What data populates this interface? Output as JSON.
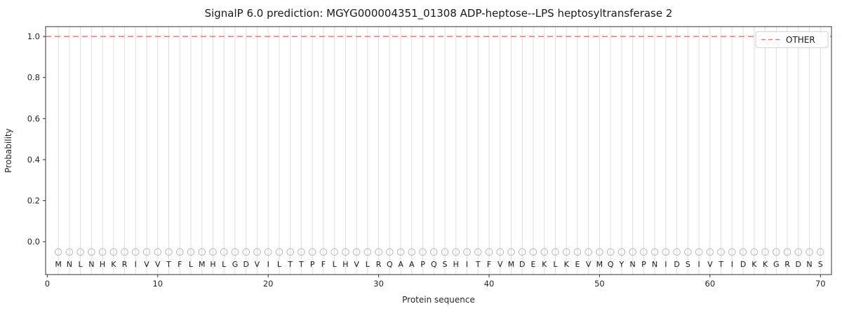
{
  "chart_data": {
    "type": "line",
    "title": "SignalP 6.0 prediction: MGYG000004351_01308 ADP-heptose--LPS heptosyltransferase 2",
    "xlabel": "Protein sequence",
    "ylabel": "Probability",
    "xlim": [
      -0.15,
      71.0
    ],
    "ylim": [
      -0.16,
      1.048
    ],
    "x_ticks": [
      0,
      10,
      20,
      30,
      40,
      50,
      60,
      70
    ],
    "y_ticks": [
      "0.0",
      "0.2",
      "0.4",
      "0.6",
      "0.8",
      "1.0"
    ],
    "grid": {
      "vertical_per_residue": true,
      "horizontal": false,
      "color": "#dddddd"
    },
    "legend": {
      "position": "upper right",
      "entries": [
        {
          "label": "OTHER",
          "color": "#ee7577",
          "style": "dashed"
        }
      ]
    },
    "series": [
      {
        "name": "OTHER",
        "color": "#ee7577",
        "style": "dashed",
        "constant_y": 1.0
      }
    ],
    "sequence": [
      "M",
      "N",
      "L",
      "N",
      "H",
      "K",
      "R",
      "I",
      "V",
      "V",
      "T",
      "F",
      "L",
      "M",
      "H",
      "L",
      "G",
      "D",
      "V",
      "I",
      "L",
      "T",
      "T",
      "P",
      "F",
      "L",
      "H",
      "V",
      "L",
      "R",
      "Q",
      "A",
      "A",
      "P",
      "Q",
      "S",
      "H",
      "I",
      "T",
      "F",
      "V",
      "M",
      "D",
      "E",
      "K",
      "L",
      "K",
      "E",
      "V",
      "M",
      "Q",
      "Y",
      "N",
      "P",
      "N",
      "I",
      "D",
      "S",
      "I",
      "V",
      "T",
      "I",
      "D",
      "K",
      "K",
      "G",
      "R",
      "D",
      "N",
      "S"
    ],
    "residue_marker": {
      "shape": "open-circle",
      "y": -0.05,
      "color": "#c0c0c0"
    },
    "colors": {
      "spine": "#333333",
      "tick_label": "#262626",
      "letter": "#1a1a1a",
      "background": "#ffffff"
    }
  }
}
